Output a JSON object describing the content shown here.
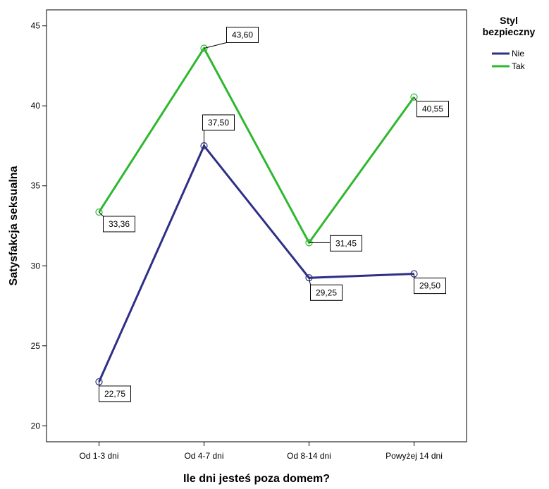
{
  "chart_data": {
    "type": "line",
    "title": "",
    "xlabel": "Ile dni jesteś poza domem?",
    "ylabel": "Satysfakcja seksualna",
    "categories": [
      "Od 1-3 dni",
      "Od 4-7 dni",
      "Od 8-14 dni",
      "Powyżej 14 dni"
    ],
    "ylim": [
      19,
      46
    ],
    "yticks": [
      20,
      25,
      30,
      35,
      40,
      45
    ],
    "ytick_labels": [
      "20",
      "25",
      "30",
      "35",
      "40",
      "45"
    ],
    "grid": false,
    "legend": {
      "title": "Styl bezpieczny",
      "title_lines": [
        "Styl",
        "bezpieczny"
      ],
      "placement": "right"
    },
    "series": [
      {
        "name": "Nie",
        "color": "#2e2f86",
        "values": [
          22.75,
          37.5,
          29.25,
          29.5
        ],
        "labels": [
          "22,75",
          "37,50",
          "29,25",
          "29,50"
        ]
      },
      {
        "name": "Tak",
        "color": "#2eb82e",
        "values": [
          33.36,
          43.6,
          31.45,
          40.55
        ],
        "labels": [
          "33,36",
          "43,60",
          "31,45",
          "40,55"
        ]
      }
    ]
  }
}
